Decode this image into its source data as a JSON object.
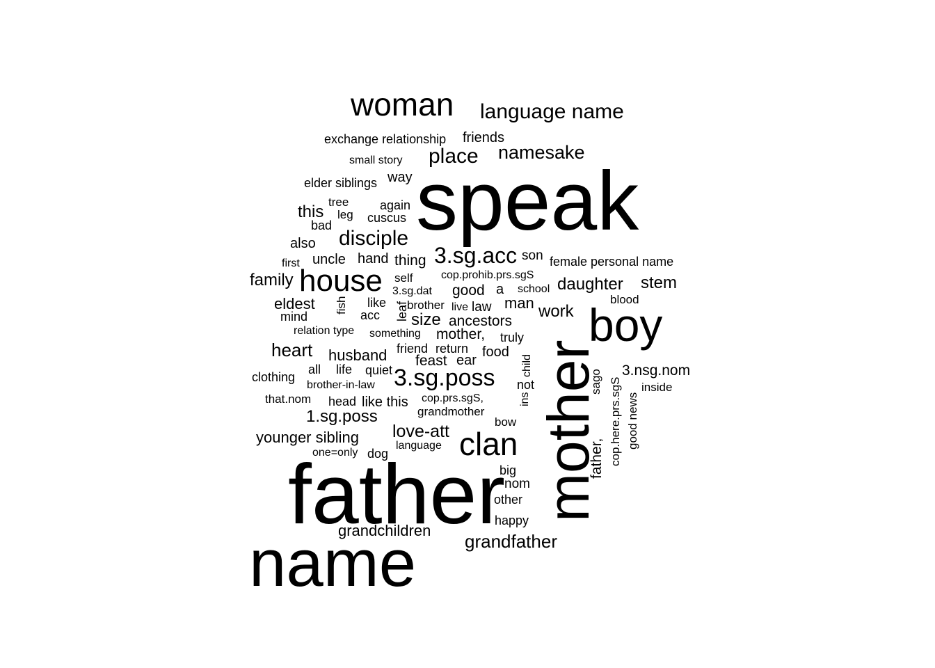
{
  "words": [
    "speak",
    "father",
    "name",
    "mother",
    "boy",
    "woman",
    "house",
    "clan",
    "3.sg.poss",
    "language name",
    "3.sg.acc",
    "place",
    "namesake",
    "disciple",
    "grandfather",
    "love-att",
    "1.sg.poss",
    "heart",
    "daughter",
    "stem",
    "grandchildren",
    "husband",
    "younger sibling",
    "family",
    "eldest",
    "size",
    "ancestors",
    "mother,",
    "work",
    "man",
    "this",
    "3.nsg.nom",
    "good",
    "exchange relationship",
    "friends",
    "small story",
    "elder siblings",
    "way",
    "uncle",
    "hand",
    "thing",
    "female personal name",
    "cop.prohib.prs.sgS",
    "also",
    "feast",
    "ear",
    "food",
    "friend",
    "return",
    "son",
    "mind",
    "acc",
    "like",
    "truly",
    "fish",
    "leaf",
    "brother",
    "live",
    "law",
    "self",
    "3.sg.dat",
    "school",
    "a",
    "blood",
    "tree",
    "again",
    "leg",
    "cuscus",
    "bad",
    "first",
    "relation type",
    "something",
    "all",
    "life",
    "quiet",
    "clothing",
    "brother-in-law",
    "that.nom",
    "head",
    "like this",
    "cop.prs.sgS,",
    "grandmother",
    "bow",
    "language",
    "one=only",
    "dog",
    "big",
    "nom",
    "other",
    "happy",
    "child",
    "ins",
    "not",
    "sago",
    "cop.here.prs.sgS",
    "good news",
    "inside",
    "father,"
  ]
}
